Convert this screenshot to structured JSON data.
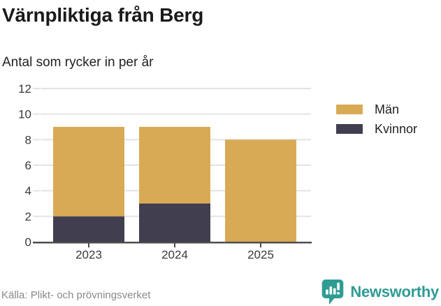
{
  "header": {
    "title": "Värnpliktiga från Berg",
    "subtitle": "Antal som rycker in per år"
  },
  "legend": [
    {
      "label": "Män",
      "color": "#d9aa55"
    },
    {
      "label": "Kvinnor",
      "color": "#413f4f"
    }
  ],
  "footer": {
    "source": "Källa: Plikt- och prövningsverket",
    "brand_name": "Newsworthy",
    "brand_color": "#2f9c94"
  },
  "chart_data": {
    "type": "bar",
    "stacked": true,
    "title": "Värnpliktiga från Berg",
    "subtitle": "Antal som rycker in per år",
    "categories": [
      "2023",
      "2024",
      "2025"
    ],
    "series": [
      {
        "name": "Män",
        "color": "#d9aa55",
        "values": [
          7,
          6,
          8
        ]
      },
      {
        "name": "Kvinnor",
        "color": "#413f4f",
        "values": [
          2,
          3,
          0
        ]
      }
    ],
    "stack_order_bottom_to_top": [
      "Kvinnor",
      "Män"
    ],
    "totals": [
      9,
      9,
      8
    ],
    "xlabel": "",
    "ylabel": "",
    "ylim": [
      0,
      12
    ],
    "yticks": [
      0,
      2,
      4,
      6,
      8,
      10,
      12
    ],
    "grid": true,
    "legend_position": "right",
    "gridline_color": "#e3e3e3",
    "axis_color": "#4d4d4d",
    "tick_label_color": "#3a3a3a"
  }
}
